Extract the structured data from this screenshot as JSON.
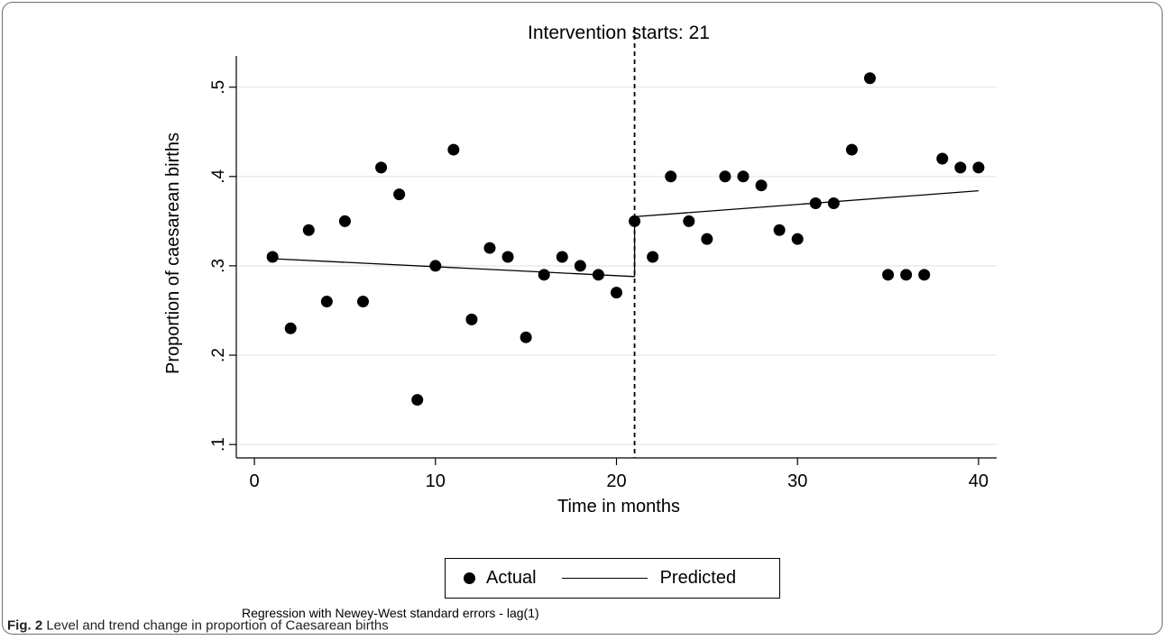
{
  "chart_data": {
    "type": "scatter",
    "title": "Intervention starts: 21",
    "xlabel": "Time in months",
    "ylabel": "Proportion of caesarean births",
    "xlim": [
      -1,
      41
    ],
    "ylim": [
      0.085,
      0.535
    ],
    "x_ticks": [
      0,
      10,
      20,
      30,
      40
    ],
    "x_tick_labels": [
      "0",
      "10",
      "20",
      "30",
      "40"
    ],
    "y_ticks": [
      0.1,
      0.2,
      0.3,
      0.4,
      0.5
    ],
    "y_tick_labels": [
      ".1",
      ".2",
      ".3",
      ".4",
      ".5"
    ],
    "grid": true,
    "intervention_x": 21,
    "series": [
      {
        "name": "Actual",
        "marker": "circle",
        "x": [
          1,
          2,
          3,
          4,
          5,
          6,
          7,
          8,
          9,
          10,
          11,
          12,
          13,
          14,
          15,
          16,
          17,
          18,
          19,
          20,
          21,
          22,
          23,
          24,
          25,
          26,
          27,
          28,
          29,
          30,
          31,
          32,
          33,
          34,
          35,
          36,
          37,
          38,
          39,
          40
        ],
        "y": [
          0.31,
          0.23,
          0.34,
          0.26,
          0.35,
          0.26,
          0.41,
          0.38,
          0.15,
          0.3,
          0.43,
          0.24,
          0.32,
          0.31,
          0.22,
          0.29,
          0.31,
          0.3,
          0.29,
          0.27,
          0.35,
          0.31,
          0.4,
          0.35,
          0.33,
          0.4,
          0.4,
          0.39,
          0.34,
          0.33,
          0.37,
          0.37,
          0.43,
          0.51,
          0.29,
          0.29,
          0.29,
          0.42,
          0.41,
          0.41
        ]
      },
      {
        "name": "Predicted",
        "marker": "line",
        "segments": [
          {
            "x": [
              1,
              21
            ],
            "y": [
              0.308,
              0.288
            ]
          },
          {
            "x": [
              21,
              40
            ],
            "y": [
              0.355,
              0.384
            ]
          }
        ]
      }
    ],
    "legend": {
      "placement": "bottom",
      "entries": [
        "Actual",
        "Predicted"
      ]
    },
    "note": "Regression with Newey-West standard errors - lag(1)"
  },
  "caption": {
    "label": "Fig. 2",
    "text": "Level and trend change in proportion of Caesarean births"
  }
}
